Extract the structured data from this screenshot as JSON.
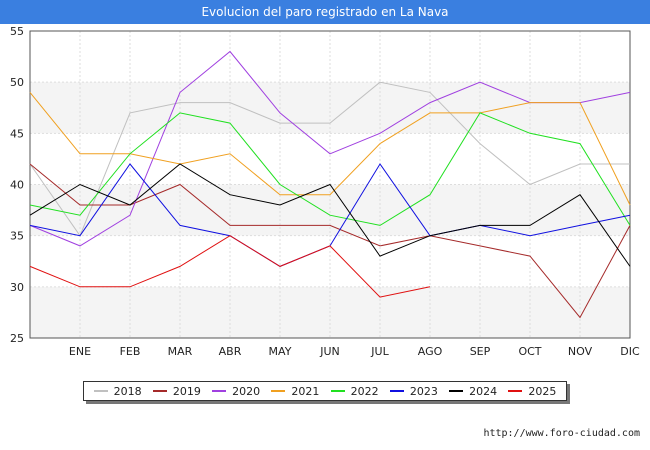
{
  "header": {
    "title": "Evolucion del paro registrado en La Nava"
  },
  "source": "http://www.foro-ciudad.com",
  "chart_data": {
    "type": "line",
    "title": "Evolucion del paro registrado en La Nava",
    "xlabel": "",
    "ylabel": "",
    "categories": [
      "",
      "ENE",
      "FEB",
      "MAR",
      "ABR",
      "MAY",
      "JUN",
      "JUL",
      "AGO",
      "SEP",
      "OCT",
      "NOV",
      "DIC"
    ],
    "ylim": [
      25,
      55
    ],
    "yticks": [
      25,
      30,
      35,
      40,
      45,
      50,
      55
    ],
    "grid": true,
    "legend_position": "bottom",
    "series": [
      {
        "name": "2018",
        "color": "#c0c0c0",
        "values": [
          42,
          35,
          47,
          48,
          48,
          46,
          46,
          50,
          49,
          44,
          40,
          42,
          42
        ]
      },
      {
        "name": "2019",
        "color": "#a52a2a",
        "values": [
          42,
          38,
          38,
          40,
          36,
          36,
          36,
          34,
          35,
          34,
          33,
          27,
          36
        ]
      },
      {
        "name": "2020",
        "color": "#a040e0",
        "values": [
          36,
          34,
          37,
          49,
          53,
          47,
          43,
          45,
          48,
          50,
          48,
          48,
          49
        ]
      },
      {
        "name": "2021",
        "color": "#f0a020",
        "values": [
          49,
          43,
          43,
          42,
          43,
          39,
          39,
          44,
          47,
          47,
          48,
          48,
          38
        ]
      },
      {
        "name": "2022",
        "color": "#20e020",
        "values": [
          38,
          37,
          43,
          47,
          46,
          40,
          37,
          36,
          39,
          47,
          45,
          44,
          36
        ]
      },
      {
        "name": "2023",
        "color": "#1010e0",
        "values": [
          36,
          35,
          42,
          36,
          35,
          32,
          34,
          42,
          35,
          36,
          35,
          36,
          37
        ]
      },
      {
        "name": "2024",
        "color": "#000000",
        "values": [
          37,
          40,
          38,
          42,
          39,
          38,
          40,
          33,
          35,
          36,
          36,
          39,
          32
        ]
      },
      {
        "name": "2025",
        "color": "#e01010",
        "values": [
          32,
          30,
          30,
          32,
          35,
          32,
          34,
          29,
          30,
          null,
          null,
          null,
          null
        ]
      }
    ]
  }
}
